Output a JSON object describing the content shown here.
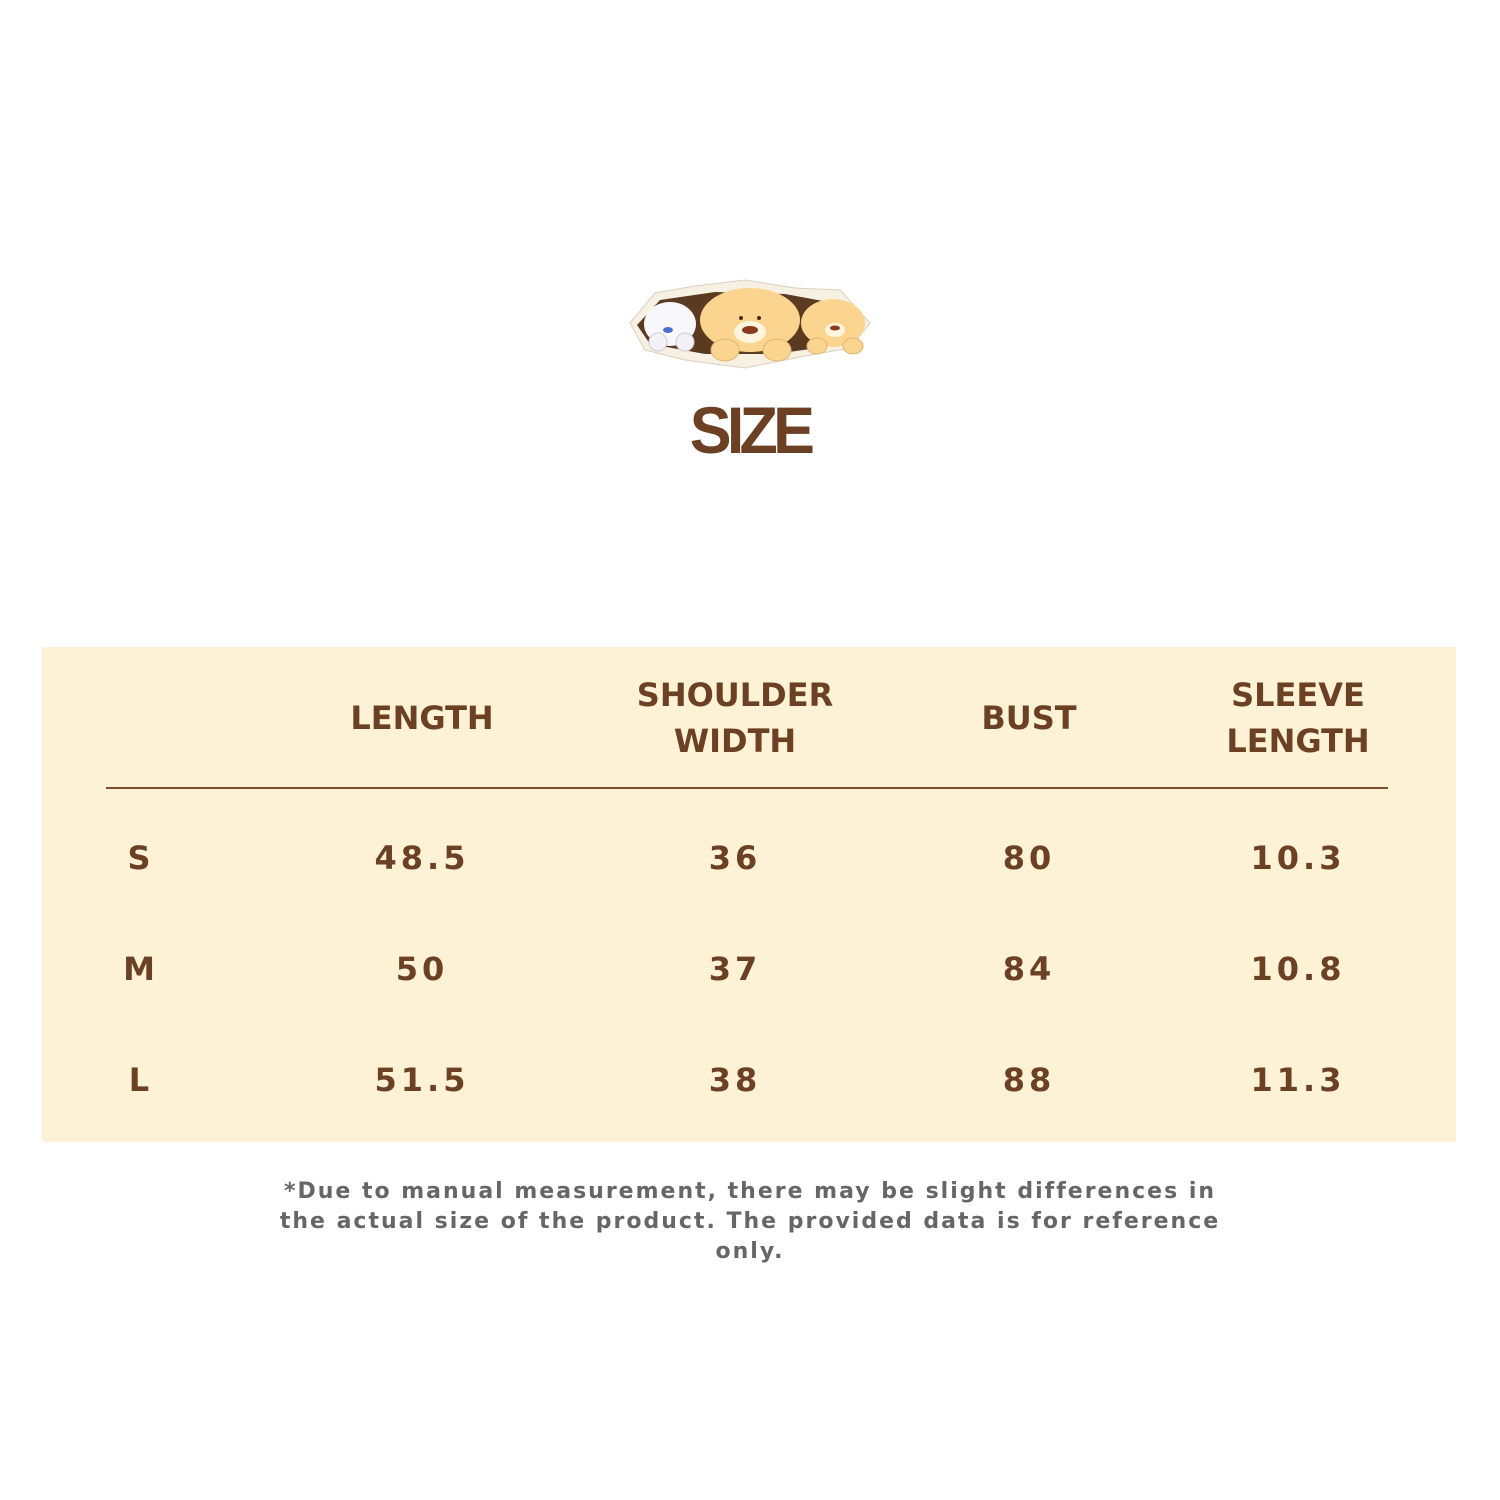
{
  "title": "SIZE",
  "illustration": "three-bears-peeking-through-paper",
  "colors": {
    "text": "#6b4023",
    "panel": "#fdf1d6",
    "note": "#666666"
  },
  "table": {
    "headers": [
      "",
      "LENGTH",
      "SHOULDER\nWIDTH",
      "BUST",
      "SLEEVE\nLENGTH"
    ],
    "rows": [
      {
        "size": "S",
        "values": [
          "48.5",
          "36",
          "80",
          "10.3"
        ]
      },
      {
        "size": "M",
        "values": [
          "50",
          "37",
          "84",
          "10.8"
        ]
      },
      {
        "size": "L",
        "values": [
          "51.5",
          "38",
          "88",
          "11.3"
        ]
      }
    ]
  },
  "note": "*Due to manual measurement, there may be slight differences in the actual size of the product. The provided data is for reference only."
}
